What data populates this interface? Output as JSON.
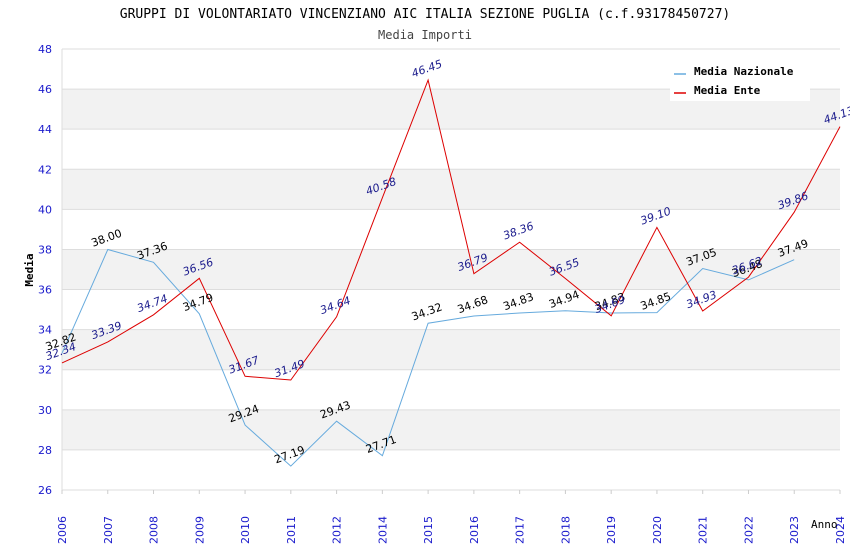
{
  "chart_data": {
    "type": "line",
    "title": "GRUPPI DI VOLONTARIATO VINCENZIANO AIC ITALIA SEZIONE PUGLIA (c.f.93178450727)",
    "subtitle": "Media Importi",
    "xlabel": "Anno",
    "ylabel": "Media",
    "ylim": [
      26,
      48
    ],
    "yticks": [
      "26",
      "28",
      "30",
      "32",
      "34",
      "36",
      "38",
      "40",
      "42",
      "44",
      "46",
      "48"
    ],
    "categories": [
      "2006",
      "2007",
      "2008",
      "2009",
      "2010",
      "2011",
      "2012",
      "2014",
      "2015",
      "2016",
      "2017",
      "2018",
      "2019",
      "2020",
      "2021",
      "2022",
      "2023",
      "2024"
    ],
    "legend_position": "top-right",
    "series": [
      {
        "name": "Media Nazionale",
        "color": "#66aadd",
        "values": [
          32.82,
          38.0,
          37.36,
          34.79,
          29.24,
          27.19,
          29.43,
          27.71,
          34.32,
          34.68,
          34.83,
          34.94,
          34.83,
          34.85,
          37.05,
          36.48,
          37.49,
          null
        ],
        "labels": [
          "32.82",
          "38.00",
          "37.36",
          "34.79",
          "29.24",
          "27.19",
          "29.43",
          "27.71",
          "34.32",
          "34.68",
          "34.83",
          "34.94",
          "34.83",
          "34.85",
          "37.05",
          "36.48",
          "37.49",
          ""
        ]
      },
      {
        "name": "Media Ente",
        "color": "#dd0000",
        "values": [
          32.34,
          33.39,
          34.74,
          36.56,
          31.67,
          31.49,
          34.64,
          40.58,
          46.45,
          36.79,
          38.36,
          36.55,
          34.69,
          39.1,
          34.93,
          36.62,
          39.86,
          44.13
        ],
        "labels": [
          "32.34",
          "33.39",
          "34.74",
          "36.56",
          "31.67",
          "31.49",
          "34.64",
          "40.58",
          "46.45",
          "36.79",
          "38.36",
          "36.55",
          "34.69",
          "39.10",
          "34.93",
          "36.62",
          "39.86",
          "44.13"
        ]
      }
    ]
  }
}
